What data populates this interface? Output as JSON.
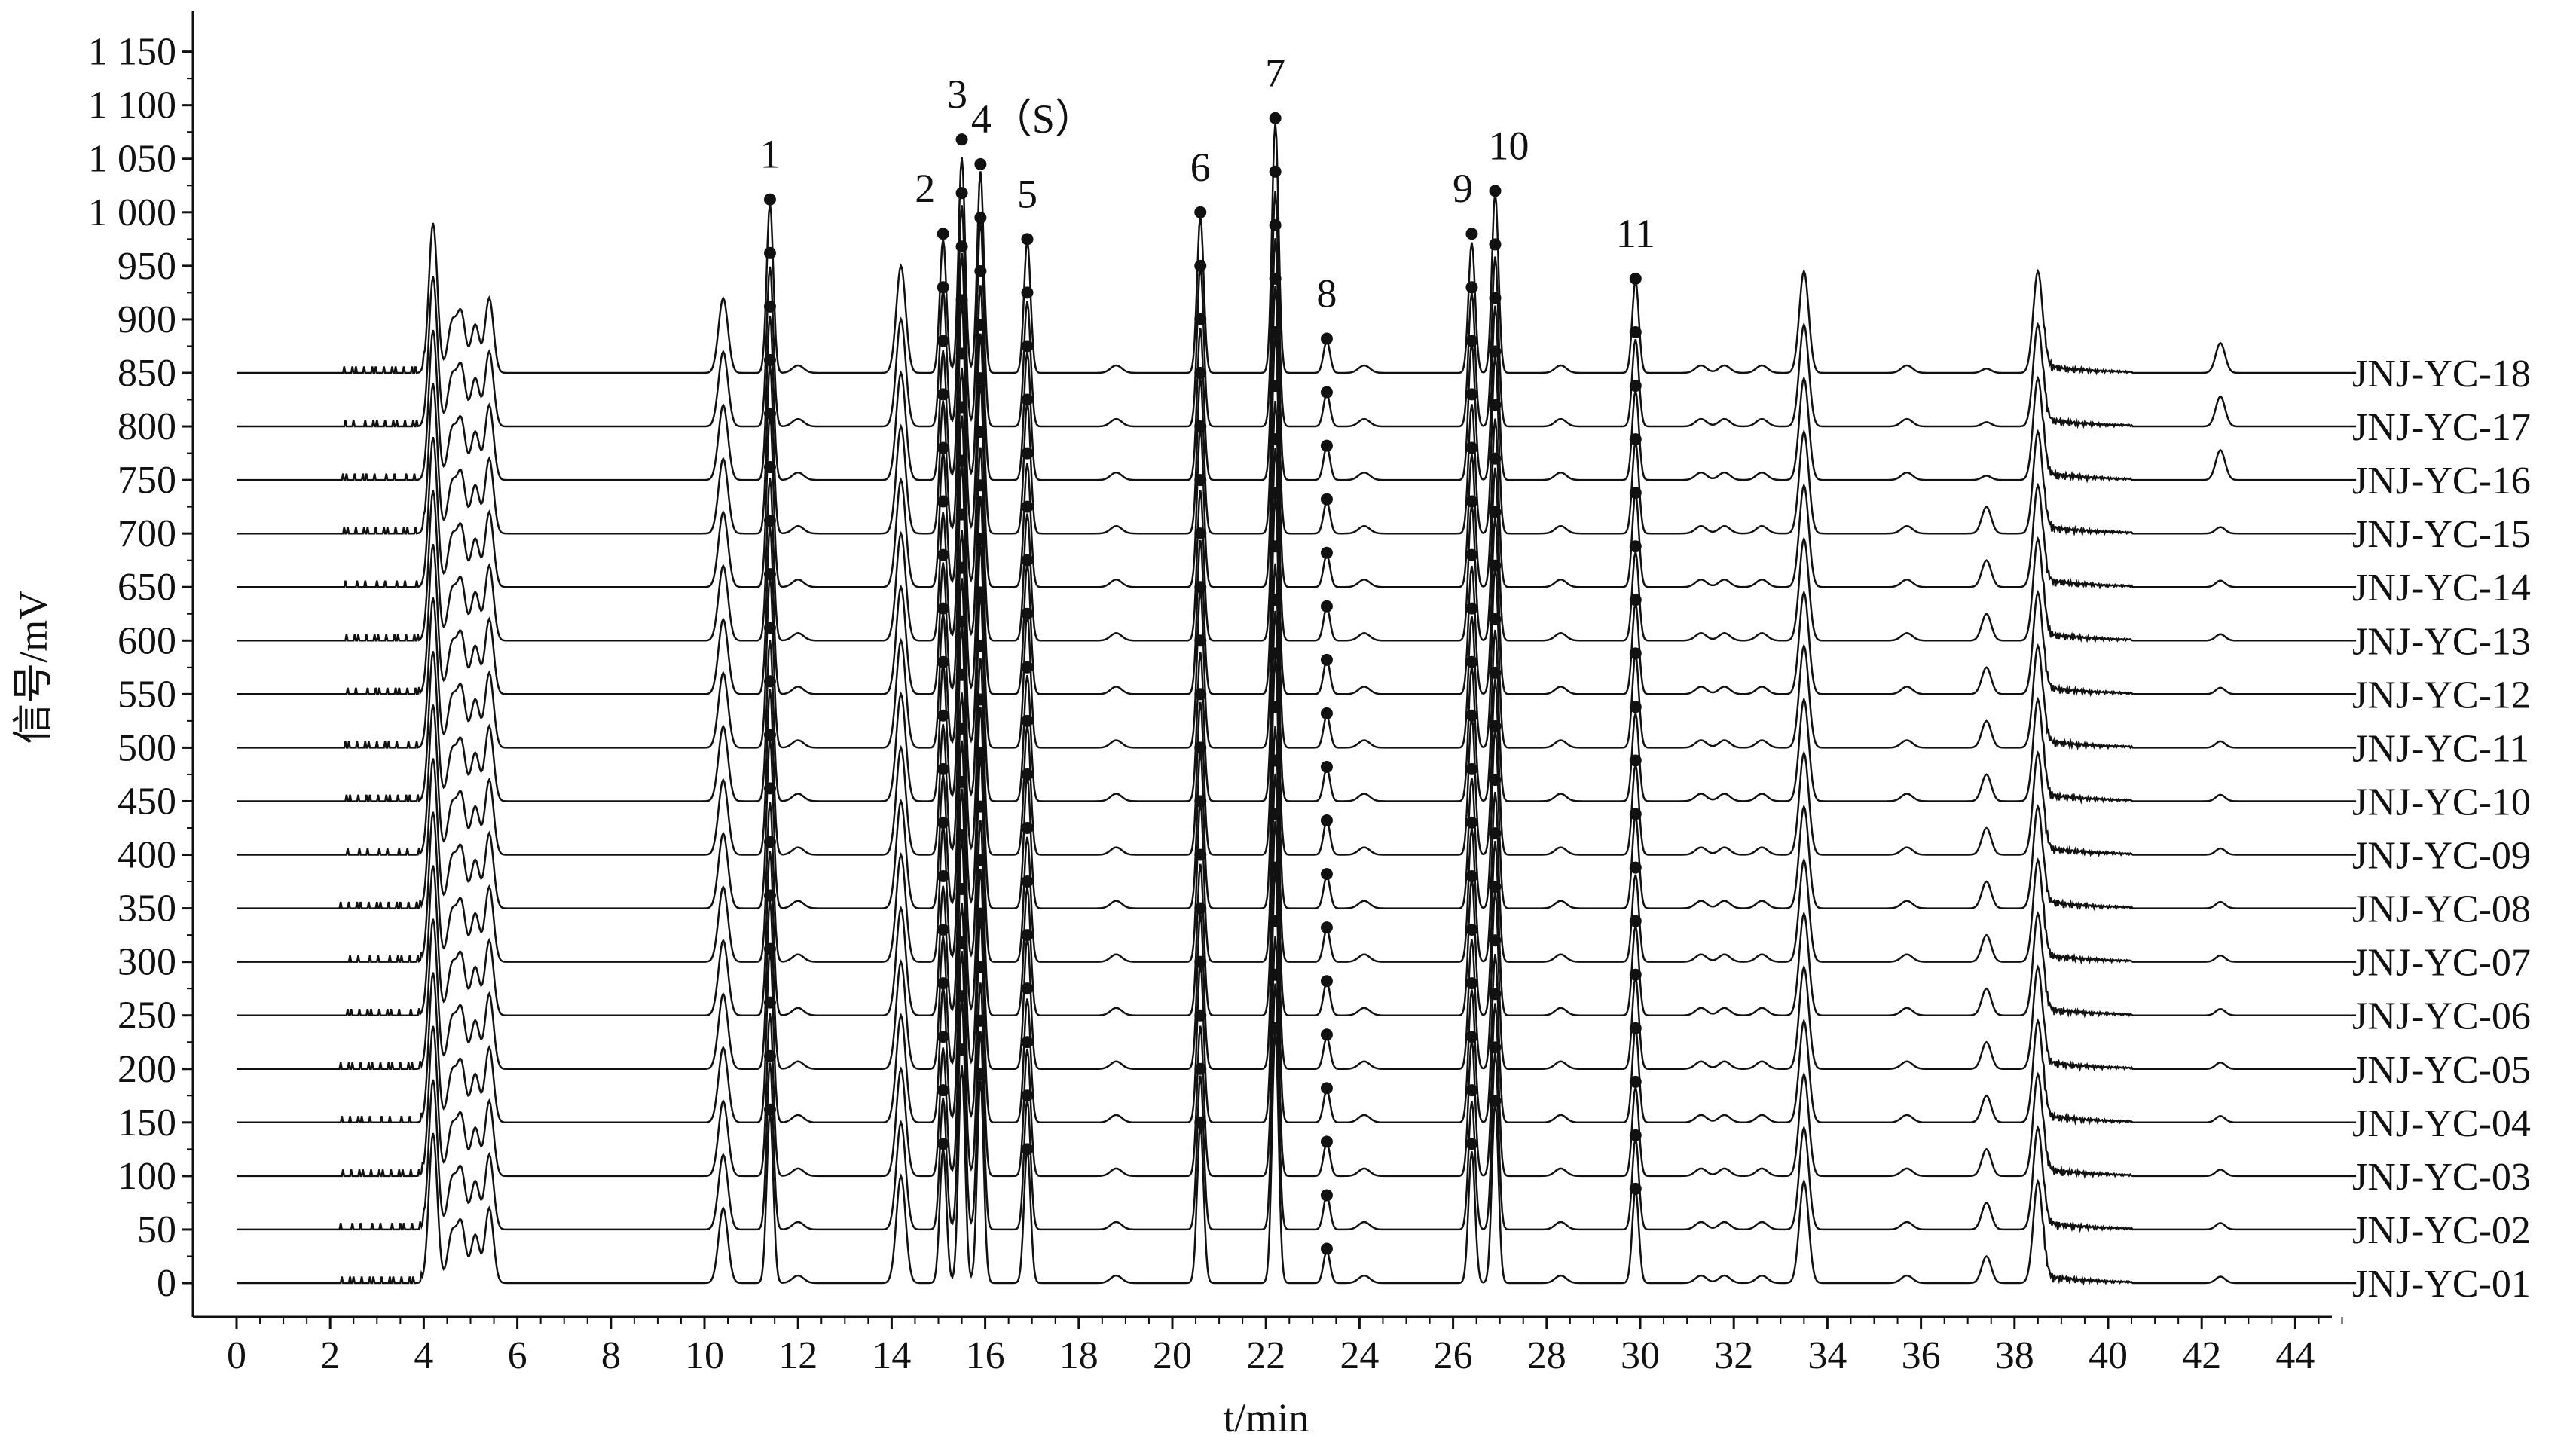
{
  "chart_data": {
    "type": "line",
    "subtype": "stacked chromatogram overlay",
    "xlabel": "t/min",
    "ylabel": "信号/mV",
    "xlim": [
      0,
      45
    ],
    "ylim": [
      0,
      1150
    ],
    "x_ticks": [
      "0",
      "2",
      "4",
      "6",
      "8",
      "10",
      "12",
      "14",
      "16",
      "18",
      "20",
      "22",
      "24",
      "26",
      "28",
      "30",
      "32",
      "34",
      "36",
      "38",
      "40",
      "42",
      "44"
    ],
    "y_ticks": [
      "0",
      "50",
      "100",
      "150",
      "200",
      "250",
      "300",
      "350",
      "400",
      "450",
      "500",
      "550",
      "600",
      "650",
      "700",
      "750",
      "800",
      "850",
      "900",
      "950",
      "1 000",
      "1 050",
      "1 100",
      "1 150"
    ],
    "y_tick_values": [
      0,
      50,
      100,
      150,
      200,
      250,
      300,
      350,
      400,
      450,
      500,
      550,
      600,
      650,
      700,
      750,
      800,
      850,
      900,
      950,
      1000,
      1050,
      1100,
      1150
    ],
    "grid": false,
    "series": [
      {
        "name": "JNJ-YC-01",
        "baseline": 0
      },
      {
        "name": "JNJ-YC-02",
        "baseline": 50
      },
      {
        "name": "JNJ-YC-03",
        "baseline": 100
      },
      {
        "name": "JNJ-YC-04",
        "baseline": 150
      },
      {
        "name": "JNJ-YC-05",
        "baseline": 200
      },
      {
        "name": "JNJ-YC-06",
        "baseline": 250
      },
      {
        "name": "JNJ-YC-07",
        "baseline": 300
      },
      {
        "name": "JNJ-YC-08",
        "baseline": 350
      },
      {
        "name": "JNJ-YC-09",
        "baseline": 400
      },
      {
        "name": "JNJ-YC-10",
        "baseline": 450
      },
      {
        "name": "JNJ-YC-11",
        "baseline": 500
      },
      {
        "name": "JNJ-YC-12",
        "baseline": 550
      },
      {
        "name": "JNJ-YC-13",
        "baseline": 600
      },
      {
        "name": "JNJ-YC-14",
        "baseline": 650
      },
      {
        "name": "JNJ-YC-15",
        "baseline": 700
      },
      {
        "name": "JNJ-YC-16",
        "baseline": 750
      },
      {
        "name": "JNJ-YC-17",
        "baseline": 800
      },
      {
        "name": "JNJ-YC-18",
        "baseline": 850
      }
    ],
    "common_peaks": [
      {
        "label": "1",
        "t": 11.4,
        "apex": 1012
      },
      {
        "label": "2",
        "t": 15.1,
        "apex": 980
      },
      {
        "label": "3",
        "t": 15.5,
        "apex": 1068
      },
      {
        "label": "4（S）",
        "t": 15.9,
        "apex": 1045
      },
      {
        "label": "5",
        "t": 16.9,
        "apex": 975
      },
      {
        "label": "6",
        "t": 20.6,
        "apex": 1000
      },
      {
        "label": "7",
        "t": 22.2,
        "apex": 1088
      },
      {
        "label": "8",
        "t": 23.3,
        "apex": 882
      },
      {
        "label": "9",
        "t": 26.4,
        "apex": 980
      },
      {
        "label": "10",
        "t": 26.9,
        "apex": 1020
      },
      {
        "label": "11",
        "t": 29.9,
        "apex": 938
      }
    ],
    "other_peaks": [
      {
        "t": 4.2,
        "height": 140
      },
      {
        "t": 4.6,
        "height": 45
      },
      {
        "t": 4.8,
        "height": 55
      },
      {
        "t": 5.1,
        "height": 45
      },
      {
        "t": 5.4,
        "height": 70
      },
      {
        "t": 10.4,
        "height": 70
      },
      {
        "t": 14.2,
        "height": 100
      },
      {
        "t": 33.5,
        "height": 95
      },
      {
        "t": 38.5,
        "height": 95
      },
      {
        "t": 37.4,
        "height": 25
      },
      {
        "t": 42.4,
        "height": 28
      }
    ],
    "colors": {
      "line": "#111111",
      "marker": "#111111",
      "background": "#ffffff"
    }
  }
}
